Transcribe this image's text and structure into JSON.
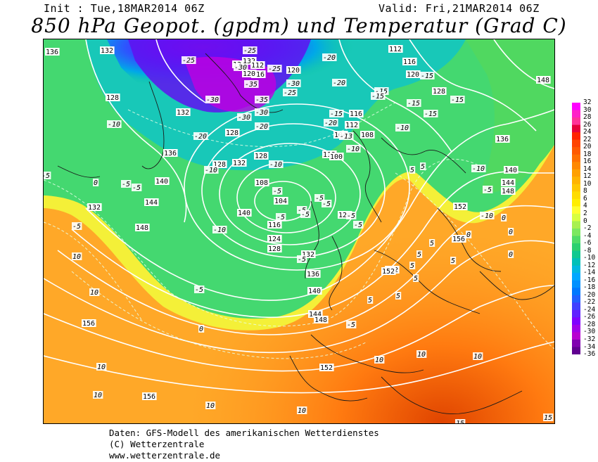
{
  "header": {
    "init": "Init : Tue,18MAR2014 06Z",
    "valid": "Valid: Fri,21MAR2014 06Z",
    "title": "850 hPa Geopot. (gpdm) und Temperatur (Grad C)"
  },
  "colorbar": {
    "ticks": [
      "32",
      "30",
      "28",
      "26",
      "24",
      "22",
      "20",
      "18",
      "16",
      "14",
      "12",
      "10",
      "8",
      "6",
      "4",
      "2",
      "0",
      "-2",
      "-4",
      "-6",
      "-8",
      "-10",
      "-12",
      "-14",
      "-16",
      "-18",
      "-20",
      "-22",
      "-24",
      "-26",
      "-28",
      "-30",
      "-32",
      "-34",
      "-36"
    ],
    "colors": [
      "#ff00ff",
      "#ff22c8",
      "#ff3399",
      "#e6003c",
      "#ff2200",
      "#ff4400",
      "#ff5a00",
      "#ff7000",
      "#ff8800",
      "#ffa000",
      "#ffb400",
      "#ffc800",
      "#ffdc00",
      "#ffee00",
      "#ffff30",
      "#d8ff40",
      "#a8f050",
      "#7ce860",
      "#50dc68",
      "#2cd070",
      "#10c890",
      "#00c0b8",
      "#00b8e0",
      "#00a8ff",
      "#0090ff",
      "#0078ff",
      "#2060ff",
      "#4040ff",
      "#6020ff",
      "#8000ff",
      "#a000e8",
      "#b800d0",
      "#8000b0",
      "#600090"
    ]
  },
  "map": {
    "geopotential_labels": [
      "136",
      "132",
      "128",
      "132",
      "132",
      "132",
      "136",
      "140",
      "144",
      "148",
      "140",
      "132",
      "128",
      "128",
      "124",
      "128",
      "132",
      "132",
      "120",
      "116",
      "112",
      "108",
      "104",
      "100",
      "104",
      "108",
      "112",
      "116",
      "112",
      "116",
      "120",
      "128",
      "136",
      "140",
      "144",
      "148",
      "148",
      "152",
      "156",
      "152",
      "152",
      "156",
      "136",
      "140",
      "144",
      "148",
      "152",
      "156",
      "112",
      "116",
      "120",
      "128",
      "120"
    ],
    "temperature_labels": [
      "-25",
      "-30",
      "-35",
      "-30",
      "-30",
      "-35",
      "-30",
      "-30",
      "-25",
      "-25",
      "-20",
      "-20",
      "-20",
      "-25",
      "-20",
      "-20",
      "-15",
      "-15",
      "-15",
      "-15",
      "-15",
      "-15",
      "-10",
      "-10",
      "-10",
      "-10",
      "-10",
      "-10",
      "-5",
      "-5",
      "-5",
      "-5",
      "-5",
      "-5",
      "-5",
      "-5",
      "-5",
      "-5",
      "0",
      "0",
      "0",
      "0",
      "0",
      "0",
      "5",
      "5",
      "5",
      "5",
      "5",
      "5",
      "5",
      "5",
      "10",
      "10",
      "10",
      "10",
      "10",
      "10",
      "10",
      "10",
      "10",
      "15",
      "15",
      "5",
      "-10",
      "-5",
      "-15",
      "-10",
      "-13",
      "-5",
      "-5",
      "-5",
      "-5",
      "-5"
    ]
  },
  "footer": {
    "line1": "Daten: GFS-Modell des amerikanischen Wetterdienstes",
    "line2": "(C) Wetterzentrale",
    "line3": "www.wetterzentrale.de"
  }
}
